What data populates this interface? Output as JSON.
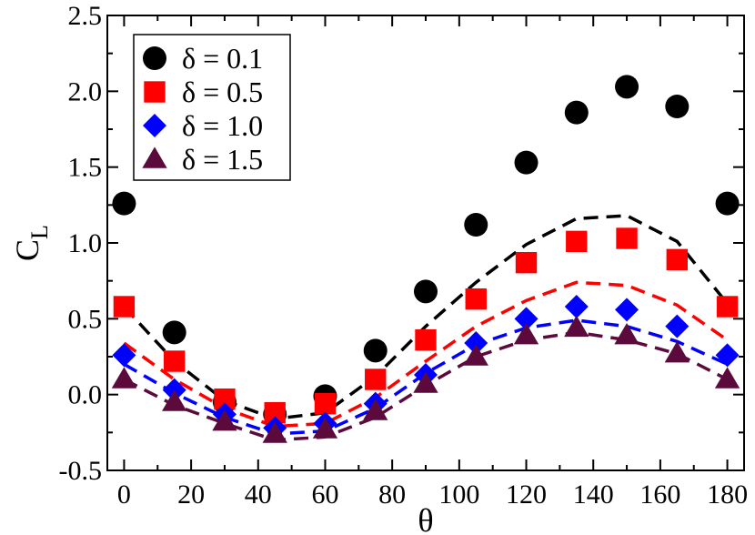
{
  "chart_data": {
    "type": "scatter",
    "title": "",
    "xlabel": "θ",
    "ylabel": "C",
    "ylabel_sub": "L",
    "xlim": [
      -5,
      185
    ],
    "ylim": [
      -0.5,
      2.5
    ],
    "xticks": [
      0,
      20,
      40,
      60,
      80,
      100,
      120,
      140,
      160,
      180
    ],
    "xtick_labels": [
      "0",
      "20",
      "40",
      "60",
      "80",
      "100",
      "120",
      "140",
      "160",
      "180"
    ],
    "yticks": [
      -0.5,
      0.0,
      0.5,
      1.0,
      1.5,
      2.0,
      2.5
    ],
    "ytick_labels": [
      "-0.5",
      "0.0",
      "0.5",
      "1.0",
      "1.5",
      "2.0",
      "2.5"
    ],
    "legend_position": "top-left",
    "x": [
      0,
      15,
      30,
      45,
      60,
      75,
      90,
      105,
      120,
      135,
      150,
      165,
      180
    ],
    "series": [
      {
        "name": "δ = 0.1",
        "marker": "circle",
        "color": "#000000",
        "values": [
          1.26,
          0.41,
          -0.05,
          -0.13,
          -0.01,
          0.29,
          0.68,
          1.12,
          1.53,
          1.86,
          2.03,
          1.9,
          1.26
        ],
        "fit": [
          0.58,
          0.22,
          -0.04,
          -0.16,
          -0.12,
          0.12,
          0.45,
          0.74,
          0.99,
          1.16,
          1.18,
          1.01,
          0.6
        ]
      },
      {
        "name": "δ = 0.5",
        "marker": "square",
        "color": "#ff0000",
        "values": [
          0.58,
          0.22,
          -0.03,
          -0.12,
          -0.06,
          0.1,
          0.36,
          0.63,
          0.87,
          1.01,
          1.03,
          0.89,
          0.58
        ],
        "fit": [
          0.34,
          0.1,
          -0.09,
          -0.21,
          -0.19,
          -0.02,
          0.22,
          0.45,
          0.62,
          0.74,
          0.72,
          0.59,
          0.36
        ]
      },
      {
        "name": "δ = 1.0",
        "marker": "diamond",
        "color": "#0000ff",
        "values": [
          0.26,
          0.03,
          -0.13,
          -0.22,
          -0.19,
          -0.06,
          0.13,
          0.34,
          0.5,
          0.58,
          0.56,
          0.45,
          0.26
        ],
        "fit": [
          0.2,
          0.01,
          -0.15,
          -0.26,
          -0.24,
          -0.09,
          0.14,
          0.33,
          0.44,
          0.49,
          0.45,
          0.35,
          0.2
        ]
      },
      {
        "name": "δ = 1.5",
        "marker": "triangle",
        "color": "#5c0a3c",
        "values": [
          0.1,
          -0.05,
          -0.18,
          -0.26,
          -0.23,
          -0.11,
          0.07,
          0.25,
          0.39,
          0.44,
          0.39,
          0.27,
          0.1
        ],
        "fit": [
          0.1,
          -0.07,
          -0.19,
          -0.3,
          -0.28,
          -0.15,
          0.06,
          0.25,
          0.36,
          0.41,
          0.36,
          0.27,
          0.1
        ]
      }
    ]
  }
}
